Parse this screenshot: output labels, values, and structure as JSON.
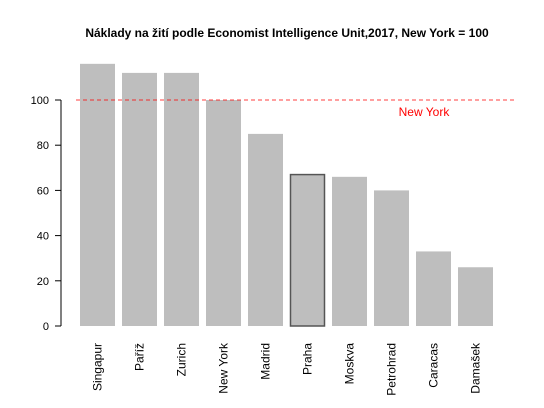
{
  "chart_data": {
    "type": "bar",
    "title": "Náklady na žití podle Economist Intelligence Unit,2017, New York = 100",
    "xlabel": "",
    "ylabel": "",
    "categories": [
      "Singapur",
      "Paříž",
      "Zurich",
      "New York",
      "Madrid",
      "Praha",
      "Moskva",
      "Petrohrad",
      "Caracas",
      "Damašek"
    ],
    "values": [
      116,
      112,
      112,
      100,
      85,
      67,
      66,
      60,
      33,
      26
    ],
    "ylim": [
      0,
      120
    ],
    "yticks": [
      0,
      20,
      40,
      60,
      80,
      100
    ],
    "highlighted_category": "Praha",
    "reference_line": {
      "value": 100,
      "label": "New York",
      "color": "#ff0000",
      "style": "dashed"
    },
    "bar_color": "#bebebe",
    "highlight_border_color": "#555555",
    "grid": false,
    "legend": "none"
  }
}
